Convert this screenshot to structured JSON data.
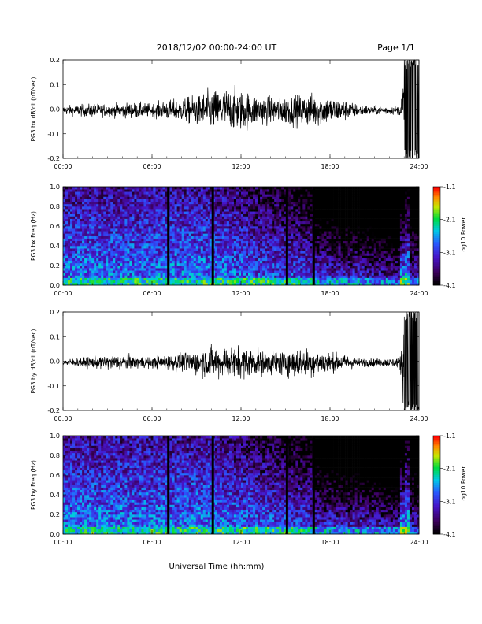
{
  "header": {
    "title": "2018/12/02  00:00-24:00 UT",
    "page": "Page 1/1"
  },
  "xaxis_label": "Universal Time (hh:mm)",
  "chart_data": [
    {
      "type": "line",
      "ylabel": "PG3 bx dB/dt (nT/sec)",
      "xlim": [
        0,
        24
      ],
      "ylim": [
        -0.2,
        0.2
      ],
      "x_ticks": [
        "00:00",
        "06:00",
        "12:00",
        "18:00",
        "24:00"
      ],
      "y_ticks": [
        "0.2",
        "0.1",
        "0.0",
        "-0.1",
        "-0.2"
      ],
      "envelope": {
        "hours": [
          0,
          1,
          2,
          3,
          4,
          5,
          6,
          7,
          8,
          9,
          10,
          11,
          12,
          13,
          14,
          15,
          16,
          17,
          18,
          19,
          20,
          21,
          22,
          22.7,
          23.0,
          23.5,
          24
        ],
        "amplitude": [
          0.02,
          0.025,
          0.03,
          0.028,
          0.032,
          0.035,
          0.03,
          0.045,
          0.05,
          0.07,
          0.09,
          0.1,
          0.09,
          0.07,
          0.06,
          0.065,
          0.07,
          0.075,
          0.06,
          0.045,
          0.025,
          0.02,
          0.018,
          0.02,
          0.2,
          0.2,
          0.2
        ]
      }
    },
    {
      "type": "heatmap",
      "ylabel": "PG3 bx Freq (Hz)",
      "xlim": [
        0,
        24
      ],
      "ylim": [
        0,
        1.0
      ],
      "x_ticks": [
        "00:00",
        "06:00",
        "12:00",
        "18:00",
        "24:00"
      ],
      "y_ticks": [
        "1.0",
        "0.8",
        "0.6",
        "0.4",
        "0.2",
        "0.0"
      ],
      "colorbar": {
        "label": "Log10 Power",
        "ticks": [
          "-1.1",
          "-2.1",
          "-3.1",
          "-4.1"
        ],
        "range": [
          -4.1,
          -1.1
        ]
      },
      "gaps_hours": [
        7.1,
        10.1,
        15.1,
        16.9
      ]
    },
    {
      "type": "line",
      "ylabel": "PG3 by dB/dt (nT/sec)",
      "xlim": [
        0,
        24
      ],
      "ylim": [
        -0.2,
        0.2
      ],
      "x_ticks": [
        "00:00",
        "06:00",
        "12:00",
        "18:00",
        "24:00"
      ],
      "y_ticks": [
        "0.2",
        "0.1",
        "0.0",
        "-0.1",
        "-0.2"
      ],
      "envelope": {
        "hours": [
          0,
          1,
          2,
          3,
          4,
          5,
          6,
          7,
          8,
          9,
          10,
          11,
          12,
          13,
          14,
          15,
          16,
          17,
          18,
          19,
          20,
          21,
          22,
          22.7,
          23.0,
          23.5,
          24
        ],
        "amplitude": [
          0.015,
          0.02,
          0.025,
          0.03,
          0.035,
          0.03,
          0.025,
          0.035,
          0.04,
          0.055,
          0.07,
          0.075,
          0.07,
          0.06,
          0.055,
          0.06,
          0.065,
          0.06,
          0.045,
          0.035,
          0.02,
          0.018,
          0.018,
          0.025,
          0.2,
          0.2,
          0.2
        ]
      }
    },
    {
      "type": "heatmap",
      "ylabel": "PG3 by Freq (Hz)",
      "xlim": [
        0,
        24
      ],
      "ylim": [
        0,
        1.0
      ],
      "x_ticks": [
        "00:00",
        "06:00",
        "12:00",
        "18:00",
        "24:00"
      ],
      "y_ticks": [
        "1.0",
        "0.8",
        "0.6",
        "0.4",
        "0.2",
        "0.0"
      ],
      "colorbar": {
        "label": "Log10 Power",
        "ticks": [
          "-1.1",
          "-2.1",
          "-3.1",
          "-4.1"
        ],
        "range": [
          -4.1,
          -1.1
        ]
      },
      "gaps_hours": [
        7.1,
        10.1,
        15.1,
        16.9
      ]
    }
  ]
}
